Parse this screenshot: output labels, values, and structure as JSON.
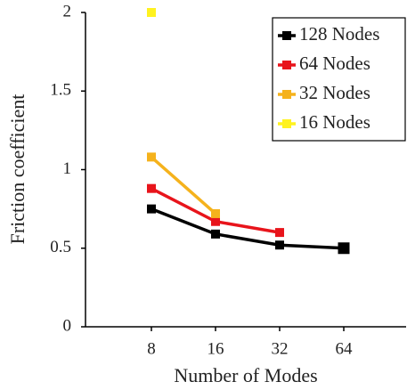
{
  "chart_data": {
    "type": "line",
    "x_label": "Number of Modes",
    "y_label": "Friction coefficient",
    "categories": [
      "8",
      "16",
      "32",
      "64"
    ],
    "series": [
      {
        "name": "128 Nodes",
        "color": "#000000",
        "values": [
          0.75,
          0.59,
          0.52,
          0.5
        ]
      },
      {
        "name": "64 Nodes",
        "color": "#e8141b",
        "values": [
          0.88,
          0.67,
          0.6,
          null
        ]
      },
      {
        "name": "32 Nodes",
        "color": "#f5b21c",
        "values": [
          1.08,
          0.72,
          null,
          null
        ]
      },
      {
        "name": "16 Nodes",
        "color": "#fff21f",
        "values": [
          2,
          null,
          null,
          null
        ]
      }
    ],
    "ylim": [
      0,
      2
    ],
    "yticks": [
      0,
      0.5,
      1,
      1.5,
      2
    ],
    "legend": "upper right"
  }
}
